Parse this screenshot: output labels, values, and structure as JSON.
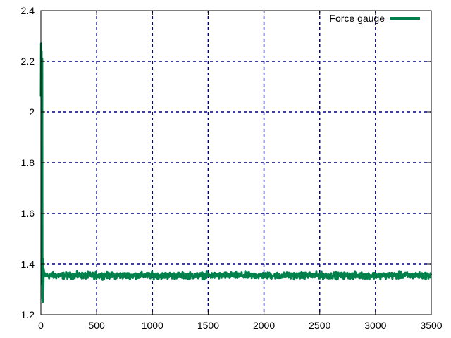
{
  "chart_data": {
    "type": "line",
    "title": "",
    "xlabel": "",
    "ylabel": "",
    "xlim": [
      0,
      3500
    ],
    "ylim": [
      1.2,
      2.4
    ],
    "x_ticks": [
      0,
      500,
      1000,
      1500,
      2000,
      2500,
      3000,
      3500
    ],
    "x_tick_labels": [
      "0",
      "500",
      "1000",
      "1500",
      "2000",
      "2500",
      "3000",
      "3500"
    ],
    "y_ticks": [
      1.2,
      1.4,
      1.6,
      1.8,
      2.0,
      2.2,
      2.4
    ],
    "y_tick_labels": [
      "1.2",
      "1.4",
      "1.6",
      "1.8",
      "2",
      "2.2",
      "2.4"
    ],
    "grid": true,
    "legend_position": "top-right",
    "series": [
      {
        "name": "Force gauge",
        "color": "#00804a",
        "initial_transient": {
          "x": [
            0,
            2,
            4,
            6,
            8,
            10,
            12,
            14,
            16,
            18,
            20,
            22,
            25,
            30
          ],
          "y": [
            2.06,
            2.27,
            2.12,
            2.24,
            1.36,
            1.32,
            2.21,
            1.27,
            1.25,
            1.42,
            1.35,
            1.3,
            1.38,
            1.36
          ]
        },
        "steady_mean": 1.355,
        "noise_amplitude": 0.018,
        "steady_x_range": [
          30,
          3500
        ]
      }
    ]
  }
}
